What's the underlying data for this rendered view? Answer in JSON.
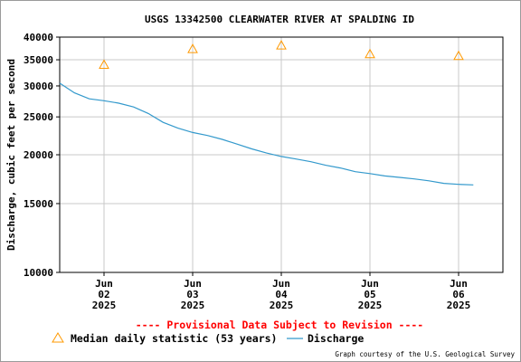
{
  "colors": {
    "discharge_line": "#3399cc",
    "median_marker": "#ff9900",
    "provisional_text": "#ff0000",
    "grid": "#c8c8c8"
  },
  "chart_data": {
    "type": "line",
    "title": "USGS 13342500 CLEARWATER RIVER AT SPALDING ID",
    "ylabel": "Discharge, cubic feet per second",
    "xlabel": "",
    "y_scale": "log",
    "ylim": [
      10000,
      40000
    ],
    "y_ticks": [
      {
        "value": 10000,
        "label": "10000"
      },
      {
        "value": 15000,
        "label": "15000"
      },
      {
        "value": 20000,
        "label": "20000"
      },
      {
        "value": 25000,
        "label": "25000"
      },
      {
        "value": 30000,
        "label": "30000"
      },
      {
        "value": 35000,
        "label": "35000"
      },
      {
        "value": 40000,
        "label": "40000"
      }
    ],
    "xlim": [
      "2025-06-01 12:00",
      "2025-06-06 12:00"
    ],
    "x_ticks": [
      {
        "value": "2025-06-02 00:00",
        "month": "Jun",
        "day": "02",
        "year": "2025"
      },
      {
        "value": "2025-06-03 00:00",
        "month": "Jun",
        "day": "03",
        "year": "2025"
      },
      {
        "value": "2025-06-04 00:00",
        "month": "Jun",
        "day": "04",
        "year": "2025"
      },
      {
        "value": "2025-06-05 00:00",
        "month": "Jun",
        "day": "05",
        "year": "2025"
      },
      {
        "value": "2025-06-06 00:00",
        "month": "Jun",
        "day": "06",
        "year": "2025"
      }
    ],
    "grid": true,
    "legend_position": "bottom-left",
    "series": [
      {
        "name": "Discharge",
        "kind": "line",
        "x": [
          "2025-06-01 12:00",
          "2025-06-01 16:00",
          "2025-06-01 20:00",
          "2025-06-02 00:00",
          "2025-06-02 04:00",
          "2025-06-02 08:00",
          "2025-06-02 12:00",
          "2025-06-02 16:00",
          "2025-06-02 20:00",
          "2025-06-03 00:00",
          "2025-06-03 04:00",
          "2025-06-03 08:00",
          "2025-06-03 12:00",
          "2025-06-03 16:00",
          "2025-06-03 20:00",
          "2025-06-04 00:00",
          "2025-06-04 04:00",
          "2025-06-04 08:00",
          "2025-06-04 12:00",
          "2025-06-04 16:00",
          "2025-06-04 20:00",
          "2025-06-05 00:00",
          "2025-06-05 04:00",
          "2025-06-05 08:00",
          "2025-06-05 12:00",
          "2025-06-05 16:00",
          "2025-06-05 20:00",
          "2025-06-06 00:00",
          "2025-06-06 04:00"
        ],
        "y": [
          30500,
          28800,
          27800,
          27500,
          27100,
          26500,
          25500,
          24200,
          23400,
          22800,
          22400,
          21900,
          21300,
          20700,
          20200,
          19800,
          19500,
          19200,
          18800,
          18500,
          18100,
          17900,
          17650,
          17500,
          17350,
          17150,
          16900,
          16800,
          16750
        ]
      },
      {
        "name": "Median daily statistic (53 years)",
        "kind": "marker",
        "marker": "triangle",
        "x": [
          "2025-06-02 00:00",
          "2025-06-03 00:00",
          "2025-06-04 00:00",
          "2025-06-05 00:00",
          "2025-06-06 00:00"
        ],
        "y": [
          34000,
          37300,
          38100,
          36200,
          35800
        ]
      }
    ]
  },
  "provisional_note": "---- Provisional Data Subject to Revision ----",
  "credit": "Graph courtesy of the U.S. Geological Survey"
}
